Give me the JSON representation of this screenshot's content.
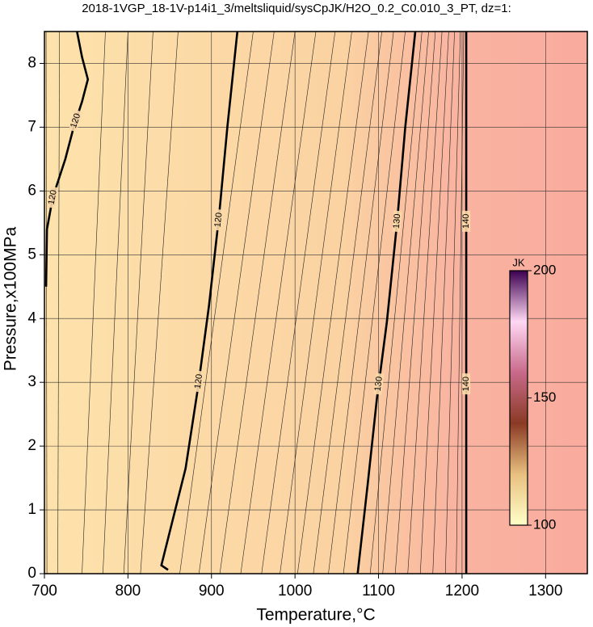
{
  "chart_data": {
    "type": "contour",
    "title": "2018-1VGP_18-1V-p14i1_3/meltsliquid/sysCpJK/H2O_0.2_C0.010_3_PT, dz=1:",
    "x_label": "Temperature,°C",
    "y_label": "Pressure,x100MPa",
    "xlim": [
      700,
      1350
    ],
    "ylim": [
      0,
      8.5
    ],
    "xticks": [
      700,
      800,
      900,
      1000,
      1100,
      1200,
      1300
    ],
    "yticks": [
      0,
      1,
      2,
      3,
      4,
      5,
      6,
      7,
      8
    ],
    "grid": true,
    "series": [
      {
        "name": "120",
        "color": "#000000",
        "x": [
          702,
          703,
          710,
          725,
          735,
          745,
          752,
          745,
          739
        ],
        "y": [
          4.5,
          5.4,
          5.9,
          6.5,
          7.0,
          7.4,
          7.75,
          8.1,
          8.5
        ]
      },
      {
        "name": "120",
        "color": "#000000",
        "x": [
          848,
          840,
          852,
          869,
          884,
          897,
          909,
          919,
          931
        ],
        "y": [
          0.06,
          0.13,
          0.76,
          1.65,
          2.93,
          4.2,
          5.6,
          7.0,
          8.5
        ]
      },
      {
        "name": "130",
        "color": "#000000",
        "x": [
          1075,
          1087,
          1098,
          1110,
          1122,
          1132,
          1144
        ],
        "y": [
          0,
          1.4,
          2.74,
          3.95,
          5.48,
          7.0,
          8.5
        ]
      },
      {
        "name": "140",
        "color": "#000000",
        "x": [
          1205,
          1205
        ],
        "y": [
          0,
          8.5
        ]
      }
    ],
    "minor_contours": [
      {
        "x": [
          703,
          702
        ],
        "y": [
          0,
          8.5
        ]
      },
      {
        "x": [
          716,
          718
        ],
        "y": [
          0,
          8.5
        ]
      },
      {
        "x": [
          745,
          773
        ],
        "y": [
          0,
          8.5
        ]
      },
      {
        "x": [
          770,
          800
        ],
        "y": [
          0,
          8.5
        ]
      },
      {
        "x": [
          795,
          830
        ],
        "y": [
          0,
          8.5
        ]
      },
      {
        "x": [
          815,
          860
        ],
        "y": [
          0,
          8.5
        ]
      },
      {
        "x": [
          862,
          950
        ],
        "y": [
          0,
          8.5
        ]
      },
      {
        "x": [
          885,
          975
        ],
        "y": [
          0,
          8.5
        ]
      },
      {
        "x": [
          910,
          1000
        ],
        "y": [
          0,
          8.5
        ]
      },
      {
        "x": [
          935,
          1025
        ],
        "y": [
          0,
          8.5
        ]
      },
      {
        "x": [
          960,
          1048
        ],
        "y": [
          0,
          8.5
        ]
      },
      {
        "x": [
          982,
          1068
        ],
        "y": [
          0,
          8.5
        ]
      },
      {
        "x": [
          1003,
          1088
        ],
        "y": [
          0,
          8.5
        ]
      },
      {
        "x": [
          1022,
          1104
        ],
        "y": [
          0,
          8.5
        ]
      },
      {
        "x": [
          1040,
          1118
        ],
        "y": [
          0,
          8.5
        ]
      },
      {
        "x": [
          1058,
          1132
        ],
        "y": [
          0,
          8.5
        ]
      },
      {
        "x": [
          1090,
          1152
        ],
        "y": [
          0,
          8.5
        ]
      },
      {
        "x": [
          1105,
          1160
        ],
        "y": [
          0,
          8.5
        ]
      },
      {
        "x": [
          1120,
          1168
        ],
        "y": [
          0,
          8.5
        ]
      },
      {
        "x": [
          1135,
          1176
        ],
        "y": [
          0,
          8.5
        ]
      },
      {
        "x": [
          1150,
          1184
        ],
        "y": [
          0,
          8.5
        ]
      },
      {
        "x": [
          1165,
          1191
        ],
        "y": [
          0,
          8.5
        ]
      },
      {
        "x": [
          1180,
          1198
        ],
        "y": [
          0,
          8.5
        ]
      },
      {
        "x": [
          1193,
          1202
        ],
        "y": [
          0,
          8.5
        ]
      }
    ],
    "colorbar": {
      "label": "JK",
      "lim": [
        100,
        200
      ],
      "ticks": [
        100,
        150,
        200
      ],
      "colors": [
        "#ffffc8",
        "#e8c080",
        "#8a3a24",
        "#c86a8a",
        "#ffd8f4",
        "#3c0050"
      ]
    }
  }
}
